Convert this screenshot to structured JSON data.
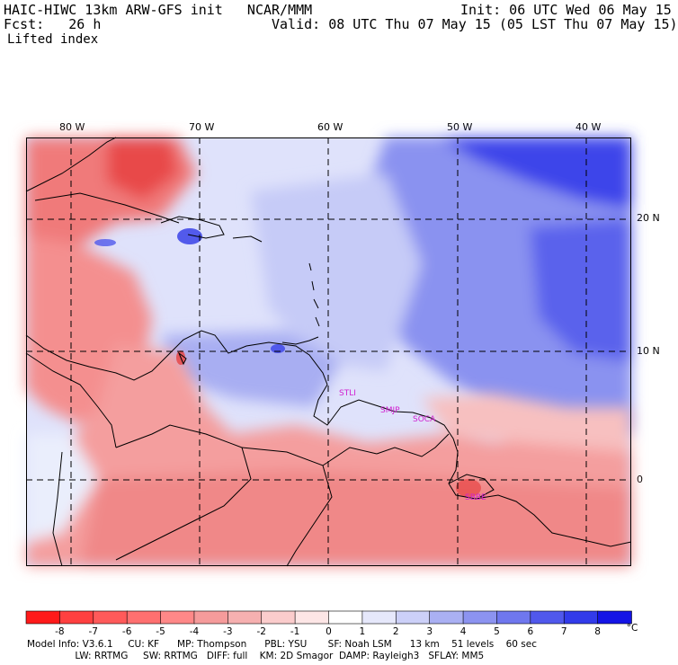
{
  "header": {
    "model_title": "HAIC-HIWC 13km ARW-GFS init   NCAR/MMM",
    "init": "Init: 06 UTC Wed 06 May 15",
    "fcst": "Fcst:   26 h",
    "valid": "Valid: 08 UTC Thu 07 May 15 (05 LST Thu 07 May 15)",
    "field": "Lifted index"
  },
  "axes": {
    "lon_labels": [
      "80 W",
      "70 W",
      "60 W",
      "50 W",
      "40 W"
    ],
    "lat_labels": [
      "20 N",
      "10 N",
      "0"
    ]
  },
  "stations": [
    "STLI",
    "SMJP",
    "SOCA",
    "SBBE"
  ],
  "colorbar": {
    "labels": [
      "-8",
      "-7",
      "-6",
      "-5",
      "-4",
      "-3",
      "-2",
      "-1",
      "0",
      "1",
      "2",
      "3",
      "4",
      "5",
      "6",
      "7",
      "8"
    ],
    "unit": "°C",
    "colors": [
      "#ff1a1a",
      "#ff4040",
      "#ff5a5a",
      "#ff7070",
      "#ff8888",
      "#f59b9b",
      "#f6b0b0",
      "#fbcccc",
      "#fde6e6",
      "#ffffff",
      "#e6e8fb",
      "#ccd0f8",
      "#aab0f3",
      "#8c93f0",
      "#6f77ee",
      "#5058ec",
      "#323bea",
      "#1414e6"
    ]
  },
  "footer": {
    "line1": "Model Info: V3.6.1     CU: KF      MP: Thompson      PBL: YSU       SF: Noah LSM      13 km    51 levels    60 sec",
    "line2": "                LW: RRTMG     SW: RRTMG   DIFF: full    KM: 2D Smagor  DAMP: Rayleigh3   SFLAY: MM5"
  }
}
